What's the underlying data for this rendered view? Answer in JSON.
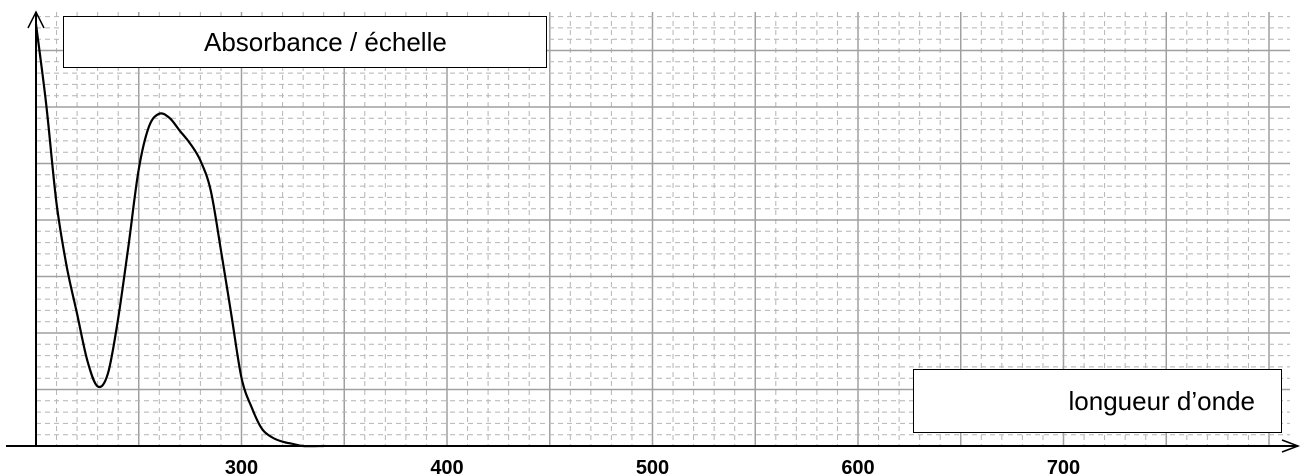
{
  "chart_data": {
    "type": "line",
    "ylabel": "Absorbance / échelle",
    "xlabel": "longueur d’onde",
    "xlim": [
      200,
      805
    ],
    "ylim": [
      0,
      1.0
    ],
    "grid": true,
    "xticks": [
      300,
      400,
      500,
      600,
      700
    ],
    "series": [
      {
        "x": [
          200,
          205,
          210,
          215,
          220,
          225,
          230,
          235,
          240,
          245,
          250,
          255,
          260,
          265,
          270,
          275,
          280,
          285,
          290,
          295,
          300,
          305,
          310,
          315,
          320,
          325,
          330,
          340
        ],
        "y": [
          0.99,
          0.8,
          0.57,
          0.42,
          0.31,
          0.2,
          0.14,
          0.17,
          0.3,
          0.47,
          0.65,
          0.75,
          0.78,
          0.77,
          0.74,
          0.71,
          0.67,
          0.6,
          0.46,
          0.31,
          0.16,
          0.09,
          0.04,
          0.02,
          0.01,
          0.005,
          0.0,
          0.0
        ]
      }
    ],
    "colors": {
      "line": "#000000",
      "grid_major": "#a0a0a0",
      "grid_minor": "#b4b4b4",
      "axis": "#000000"
    }
  }
}
